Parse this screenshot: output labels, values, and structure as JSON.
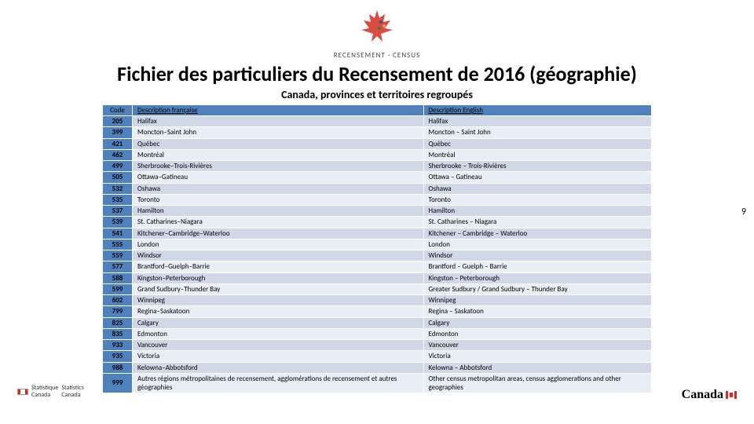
{
  "header": {
    "logo_alt": "maple-leaf",
    "logo_text": "RECENSEMENT · CENSUS"
  },
  "title": "Fichier des particuliers du Recensement de 2016 (géographie)",
  "subtitle": "Canada, provinces et territoires regroupés",
  "table": {
    "columns": [
      "Code",
      "Description française",
      "Description English"
    ],
    "rows": [
      [
        "205",
        "Halifax",
        "Halifax"
      ],
      [
        "399",
        "Moncton–Saint John",
        "Moncton – Saint John"
      ],
      [
        "421",
        "Québec",
        "Québec"
      ],
      [
        "462",
        "Montréal",
        "Montréal"
      ],
      [
        "499",
        "Sherbrooke–Trois-Rivières",
        "Sherbrooke – Trois-Rivières"
      ],
      [
        "505",
        "Ottawa–Gatineau",
        "Ottawa – Gatineau"
      ],
      [
        "532",
        "Oshawa",
        "Oshawa"
      ],
      [
        "535",
        "Toronto",
        "Toronto"
      ],
      [
        "537",
        "Hamilton",
        "Hamilton"
      ],
      [
        "539",
        "St. Catharines–Niagara",
        "St. Catharines – Niagara"
      ],
      [
        "541",
        "Kitchener–Cambridge–Waterloo",
        "Kitchener – Cambridge – Waterloo"
      ],
      [
        "555",
        "London",
        "London"
      ],
      [
        "559",
        "Windsor",
        "Windsor"
      ],
      [
        "577",
        "Brantford–Guelph–Barrie",
        "Brantford – Guelph – Barrie"
      ],
      [
        "588",
        "Kingston–Peterborough",
        "Kingston – Peterborough"
      ],
      [
        "599",
        "Grand Sudbury–Thunder Bay",
        "Greater Sudbury / Grand Sudbury – Thunder Bay"
      ],
      [
        "602",
        "Winnipeg",
        "Winnipeg"
      ],
      [
        "799",
        "Regina–Saskatoon",
        "Regina – Saskatoon"
      ],
      [
        "825",
        "Calgary",
        "Calgary"
      ],
      [
        "835",
        "Edmonton",
        "Edmonton"
      ],
      [
        "933",
        "Vancouver",
        "Vancouver"
      ],
      [
        "935",
        "Victoria",
        "Victoria"
      ],
      [
        "988",
        "Kelowna–Abbotsford",
        "Kelowna – Abbotsford"
      ],
      [
        "999",
        "Autres régions métropolitaines de recensement, agglomérations de recensement et autres géographies",
        "Other census metropolitan areas, census agglomerations and other geographies"
      ]
    ],
    "col_widths": [
      "38px",
      "330px",
      "330px"
    ],
    "header_bg": "#4f81bd",
    "row_even_bg": "#d0d8e8",
    "row_odd_bg": "#e9edf4"
  },
  "footer": {
    "left_line1": "Statistique",
    "left_line2": "Canada",
    "left_line3": "Statistics",
    "left_line4": "Canada",
    "right_wordmark": "Canada"
  },
  "page_number": "9"
}
